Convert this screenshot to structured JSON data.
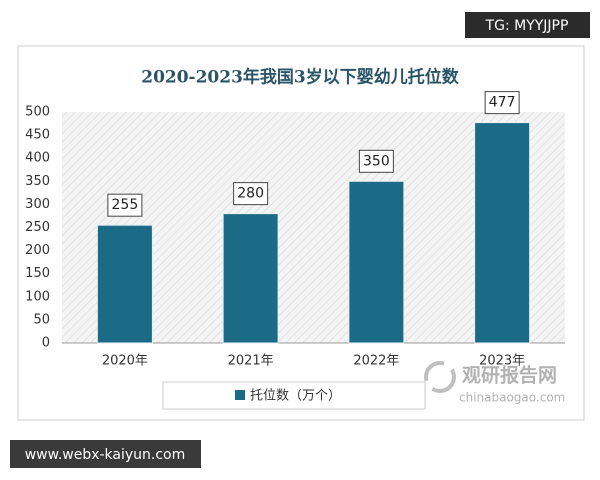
{
  "chart_data": {
    "type": "bar",
    "title": "2020-2023年我国3岁以下婴幼儿托位数",
    "categories": [
      "2020年",
      "2021年",
      "2022年",
      "2023年"
    ],
    "series": [
      {
        "name": "托位数（万个）",
        "color": "#1b6a86",
        "values": [
          255,
          280,
          350,
          477
        ]
      }
    ],
    "ylim": [
      0,
      500
    ],
    "yticks": [
      0,
      50,
      100,
      150,
      200,
      250,
      300,
      350,
      400,
      450,
      500
    ],
    "grid": false,
    "value_labels_shown": true
  },
  "overlay": {
    "tag": "TG: MYYJJPP",
    "site": "www.webx-kaiyun.com",
    "logo_name": "观研报告网",
    "logo_url": "chinabaogao.com"
  }
}
